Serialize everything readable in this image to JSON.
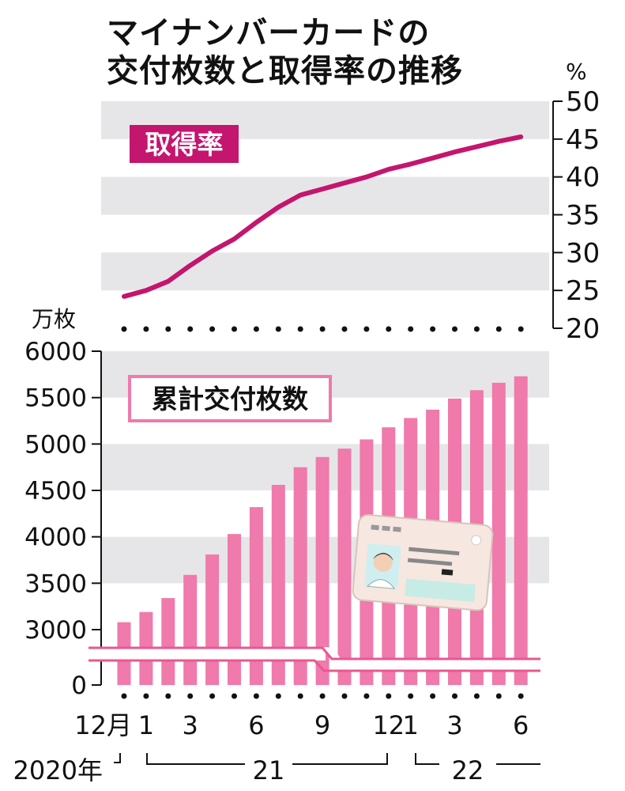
{
  "title_lines": [
    "マイナンバーカードの",
    "交付枚数と取得率の推移"
  ],
  "colors": {
    "rate_line": "#c4156f",
    "bars": "#ef7aab",
    "bars_label_border": "#ef7aab",
    "band": "#e6e6e8"
  },
  "chart_data": [
    {
      "type": "line",
      "label": "取得率",
      "unit": "%",
      "ylim": [
        20,
        50
      ],
      "yticks": [
        "20",
        "25",
        "30",
        "35",
        "40",
        "45",
        "50"
      ],
      "x": [
        "2020-12",
        "2021-01",
        "2021-02",
        "2021-03",
        "2021-04",
        "2021-05",
        "2021-06",
        "2021-07",
        "2021-08",
        "2021-09",
        "2021-10",
        "2021-11",
        "2021-12",
        "2022-01",
        "2022-02",
        "2022-03",
        "2022-04",
        "2022-05",
        "2022-06"
      ],
      "values": [
        24.2,
        25.0,
        26.2,
        28.3,
        30.2,
        31.8,
        34.0,
        36.0,
        37.6,
        38.4,
        39.2,
        40.0,
        41.0,
        41.7,
        42.5,
        43.3,
        44.0,
        44.7,
        45.3
      ]
    },
    {
      "type": "bar",
      "label": "累計交付枚数",
      "unit": "万枚",
      "ylim": [
        0,
        6000
      ],
      "axis_break": true,
      "yticks": [
        "0",
        "3000",
        "3500",
        "4000",
        "4500",
        "5000",
        "5500",
        "6000"
      ],
      "x": [
        "2020-12",
        "2021-01",
        "2021-02",
        "2021-03",
        "2021-04",
        "2021-05",
        "2021-06",
        "2021-07",
        "2021-08",
        "2021-09",
        "2021-10",
        "2021-11",
        "2021-12",
        "2022-01",
        "2022-02",
        "2022-03",
        "2022-04",
        "2022-05",
        "2022-06"
      ],
      "values": [
        3080,
        3190,
        3340,
        3590,
        3810,
        4030,
        4320,
        4560,
        4750,
        4860,
        4950,
        5050,
        5180,
        5280,
        5370,
        5490,
        5580,
        5660,
        5730
      ]
    }
  ],
  "x_axis": {
    "month_labels": [
      "12月",
      "1",
      "3",
      "6",
      "9",
      "12",
      "1",
      "3",
      "6"
    ],
    "year_labels": [
      "2020年",
      "21",
      "22"
    ]
  }
}
